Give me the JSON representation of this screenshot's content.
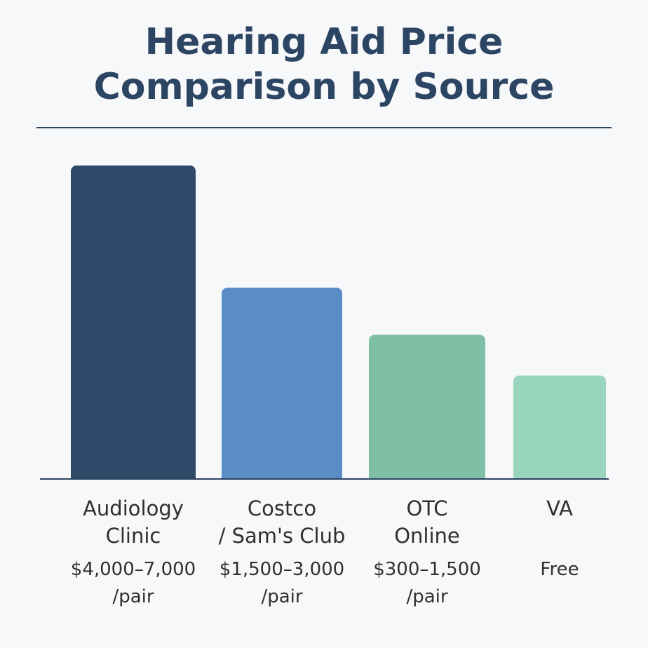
{
  "chart_data": {
    "type": "bar",
    "title_lines": [
      "Hearing Aid Price",
      "Comparison by Source"
    ],
    "categories": [
      [
        "Audiology",
        "Clinic"
      ],
      [
        "Costco",
        "/ Sam's Club"
      ],
      [
        "OTC",
        "Online"
      ],
      [
        "VA"
      ]
    ],
    "value_labels": [
      [
        "$4,000–7,000",
        "/pair"
      ],
      [
        "$1,500–3,000",
        "/pair"
      ],
      [
        "$300–1,500",
        "/pair"
      ],
      [
        "Free"
      ]
    ],
    "values": [
      100,
      61,
      46,
      33
    ],
    "ylim": [
      0,
      100
    ],
    "xlabel": "",
    "ylabel": "",
    "grid": false,
    "colors": [
      "#2f4a68",
      "#5a8cc6",
      "#7fbfa6",
      "#9ad5bd"
    ]
  }
}
